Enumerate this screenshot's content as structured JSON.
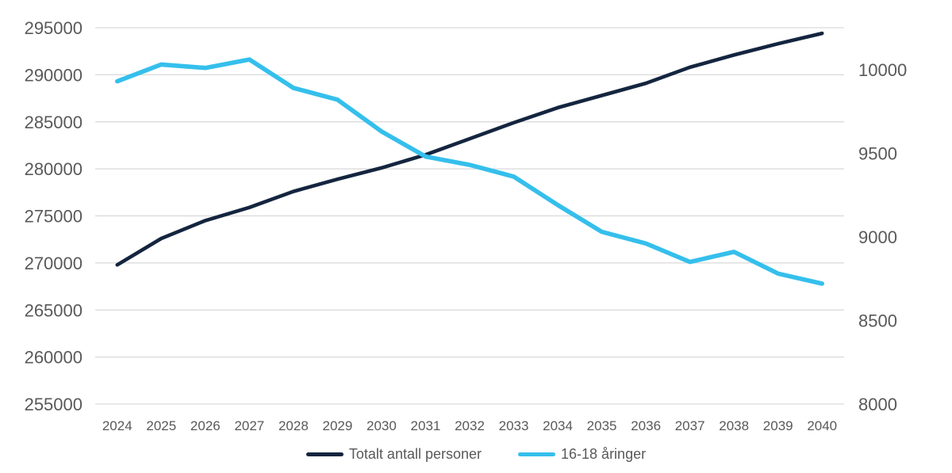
{
  "chart_data": {
    "type": "line",
    "title": "",
    "xlabel": "",
    "ylabel_left": "",
    "ylabel_right": "",
    "x_labels": [
      "2024",
      "2025",
      "2026",
      "2027",
      "2028",
      "2029",
      "2030",
      "2031",
      "2032",
      "2033",
      "2034",
      "2035",
      "2036",
      "2037",
      "2038",
      "2039",
      "2040"
    ],
    "series": [
      {
        "name": "Totalt antall personer",
        "axis": "left",
        "color": "#14253f",
        "values": [
          269800,
          272600,
          274500,
          275900,
          277600,
          278900,
          280100,
          281500,
          283200,
          284900,
          286500,
          287800,
          289100,
          290800,
          292100,
          293300,
          294400
        ]
      },
      {
        "name": "16-18 åringer",
        "axis": "right",
        "color": "#35bfec",
        "values": [
          9930,
          10030,
          10010,
          10060,
          9890,
          9820,
          9630,
          9480,
          9430,
          9360,
          9190,
          9030,
          8960,
          8850,
          8910,
          8780,
          8720
        ]
      }
    ],
    "left_axis": {
      "min": 255000,
      "max": 295000,
      "tick_step": 5000,
      "tick_labels": [
        "295000",
        "290000",
        "285000",
        "280000",
        "275000",
        "270000",
        "265000",
        "260000",
        "255000"
      ]
    },
    "right_axis": {
      "min": 8000,
      "max": 10250,
      "tick_step": 500,
      "tick_labels": [
        "10000",
        "9500",
        "9000",
        "8500",
        "8000"
      ],
      "tick_values": [
        10000,
        9500,
        9000,
        8500,
        8000
      ]
    },
    "grid": "horizontal",
    "legend_position": "bottom",
    "styles": {
      "grid_color": "#d9d9d9",
      "text_color": "#595959",
      "background": "#ffffff"
    }
  }
}
